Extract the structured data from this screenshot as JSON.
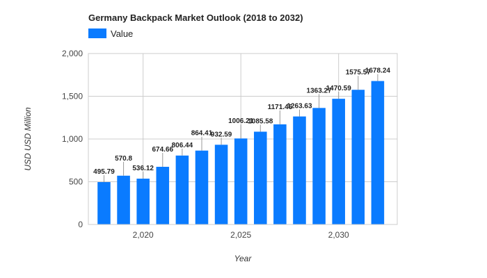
{
  "chart_data": {
    "type": "bar",
    "title": "Germany Backpack Market Outlook (2018 to 2032)",
    "xlabel": "Year",
    "ylabel": "USD USD Million",
    "legend": {
      "position": "top-left",
      "entries": [
        "Value"
      ]
    },
    "series": [
      {
        "name": "Value",
        "color": "#0a7bff",
        "x": [
          2018,
          2019,
          2020,
          2021,
          2022,
          2023,
          2024,
          2025,
          2026,
          2027,
          2028,
          2029,
          2030,
          2031,
          2032
        ],
        "values": [
          495.79,
          570.8,
          536.12,
          674.66,
          806.44,
          864.41,
          932.59,
          1006.21,
          1085.58,
          1171.46,
          1263.63,
          1363.27,
          1470.59,
          1575.57,
          1678.24
        ],
        "labels": [
          "495.79",
          "570.8",
          "536.12",
          "674.66",
          "806.44",
          "864.41",
          "932.59",
          "1006.21",
          "1085.58",
          "1171.46",
          "1263.63",
          "1363.27",
          "1470.59",
          "1575.57",
          "1678.24"
        ]
      }
    ],
    "ylim": [
      0,
      2000
    ],
    "yticks": [
      0,
      500,
      1000,
      1500,
      2000
    ],
    "ytick_labels": [
      "0",
      "500",
      "1,000",
      "1,500",
      "2,000"
    ],
    "xlim": [
      2017.2,
      2033
    ],
    "xticks": [
      2020,
      2025,
      2030
    ],
    "xtick_labels": [
      "2,020",
      "2,025",
      "2,030"
    ],
    "grid": true
  }
}
